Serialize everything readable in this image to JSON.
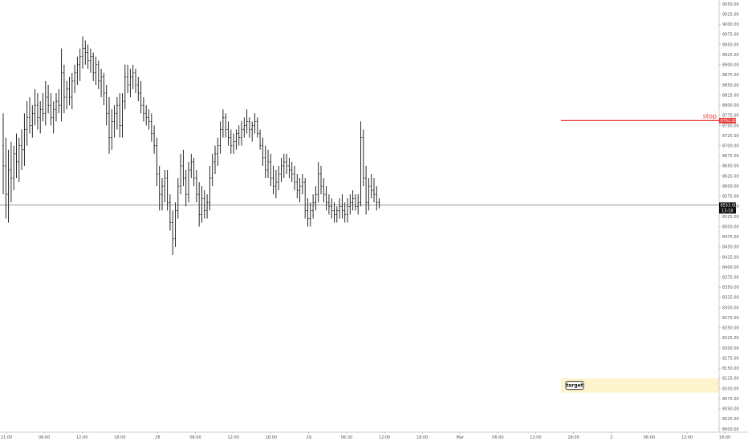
{
  "chart_data": {
    "type": "ohlc",
    "y_axis": {
      "position": "right",
      "ticks": [
        "9050.00",
        "9025.00",
        "9000.00",
        "8975.00",
        "8950.00",
        "8925.00",
        "8900.00",
        "8875.00",
        "8850.00",
        "8825.00",
        "8800.00",
        "8775.00",
        "8750.00",
        "8725.00",
        "8700.00",
        "8675.00",
        "8650.00",
        "8625.00",
        "8600.00",
        "8575.00",
        "8550.00",
        "8525.00",
        "8500.00",
        "8475.00",
        "8450.00",
        "8425.00",
        "8400.00",
        "8375.00",
        "8350.00",
        "8325.00",
        "8300.00",
        "8275.00",
        "8250.00",
        "8225.00",
        "8200.00",
        "8175.00",
        "8150.00",
        "8125.00",
        "8100.00",
        "8075.00",
        "8050.00",
        "8025.00",
        "8000.00"
      ],
      "range": [
        7992,
        9060
      ]
    },
    "x_axis": {
      "ticks": [
        "21:00",
        "06:00",
        "12:00",
        "18:00",
        "28",
        "06:00",
        "12:00",
        "18:00",
        "29",
        "06:30",
        "12:00",
        "18:00",
        "Mar",
        "06:00",
        "12:00",
        "18:00",
        "2",
        "06:00",
        "12:00",
        "18:00"
      ]
    },
    "series": [
      {
        "x": 0,
        "o": 8700,
        "h": 8780,
        "l": 8580,
        "c": 8650
      },
      {
        "x": 1,
        "o": 8650,
        "h": 8720,
        "l": 8520,
        "c": 8580
      },
      {
        "x": 2,
        "o": 8580,
        "h": 8690,
        "l": 8510,
        "c": 8640
      },
      {
        "x": 3,
        "o": 8640,
        "h": 8710,
        "l": 8560,
        "c": 8620
      },
      {
        "x": 4,
        "o": 8620,
        "h": 8700,
        "l": 8590,
        "c": 8680
      },
      {
        "x": 5,
        "o": 8680,
        "h": 8730,
        "l": 8620,
        "c": 8660
      },
      {
        "x": 6,
        "o": 8660,
        "h": 8720,
        "l": 8610,
        "c": 8700
      },
      {
        "x": 7,
        "o": 8700,
        "h": 8740,
        "l": 8640,
        "c": 8690
      },
      {
        "x": 8,
        "o": 8690,
        "h": 8780,
        "l": 8650,
        "c": 8740
      },
      {
        "x": 9,
        "o": 8740,
        "h": 8810,
        "l": 8700,
        "c": 8770
      },
      {
        "x": 10,
        "o": 8770,
        "h": 8820,
        "l": 8730,
        "c": 8750
      },
      {
        "x": 11,
        "o": 8750,
        "h": 8800,
        "l": 8720,
        "c": 8780
      },
      {
        "x": 12,
        "o": 8780,
        "h": 8840,
        "l": 8750,
        "c": 8800
      },
      {
        "x": 13,
        "o": 8800,
        "h": 8830,
        "l": 8740,
        "c": 8770
      },
      {
        "x": 14,
        "o": 8770,
        "h": 8810,
        "l": 8730,
        "c": 8790
      },
      {
        "x": 15,
        "o": 8790,
        "h": 8830,
        "l": 8760,
        "c": 8780
      },
      {
        "x": 16,
        "o": 8780,
        "h": 8860,
        "l": 8750,
        "c": 8820
      },
      {
        "x": 17,
        "o": 8820,
        "h": 8850,
        "l": 8780,
        "c": 8800
      },
      {
        "x": 18,
        "o": 8800,
        "h": 8830,
        "l": 8750,
        "c": 8770
      },
      {
        "x": 19,
        "o": 8770,
        "h": 8810,
        "l": 8730,
        "c": 8790
      },
      {
        "x": 20,
        "o": 8790,
        "h": 8830,
        "l": 8760,
        "c": 8810
      },
      {
        "x": 21,
        "o": 8810,
        "h": 8840,
        "l": 8780,
        "c": 8800
      },
      {
        "x": 22,
        "o": 8800,
        "h": 8940,
        "l": 8760,
        "c": 8880
      },
      {
        "x": 23,
        "o": 8880,
        "h": 8900,
        "l": 8780,
        "c": 8820
      },
      {
        "x": 24,
        "o": 8820,
        "h": 8860,
        "l": 8790,
        "c": 8840
      },
      {
        "x": 25,
        "o": 8840,
        "h": 8870,
        "l": 8800,
        "c": 8820
      },
      {
        "x": 26,
        "o": 8820,
        "h": 8880,
        "l": 8790,
        "c": 8860
      },
      {
        "x": 27,
        "o": 8860,
        "h": 8900,
        "l": 8830,
        "c": 8880
      },
      {
        "x": 28,
        "o": 8880,
        "h": 8920,
        "l": 8850,
        "c": 8900
      },
      {
        "x": 29,
        "o": 8900,
        "h": 8940,
        "l": 8860,
        "c": 8920
      },
      {
        "x": 30,
        "o": 8920,
        "h": 8970,
        "l": 8890,
        "c": 8940
      },
      {
        "x": 31,
        "o": 8940,
        "h": 8960,
        "l": 8900,
        "c": 8930
      },
      {
        "x": 32,
        "o": 8930,
        "h": 8950,
        "l": 8890,
        "c": 8910
      },
      {
        "x": 33,
        "o": 8910,
        "h": 8940,
        "l": 8880,
        "c": 8920
      },
      {
        "x": 34,
        "o": 8920,
        "h": 8930,
        "l": 8860,
        "c": 8880
      },
      {
        "x": 35,
        "o": 8880,
        "h": 8920,
        "l": 8850,
        "c": 8900
      },
      {
        "x": 36,
        "o": 8900,
        "h": 8910,
        "l": 8840,
        "c": 8860
      },
      {
        "x": 37,
        "o": 8860,
        "h": 8890,
        "l": 8820,
        "c": 8870
      },
      {
        "x": 38,
        "o": 8870,
        "h": 8880,
        "l": 8800,
        "c": 8830
      },
      {
        "x": 39,
        "o": 8830,
        "h": 8850,
        "l": 8750,
        "c": 8780
      },
      {
        "x": 40,
        "o": 8780,
        "h": 8820,
        "l": 8680,
        "c": 8720
      },
      {
        "x": 41,
        "o": 8720,
        "h": 8790,
        "l": 8690,
        "c": 8760
      },
      {
        "x": 42,
        "o": 8760,
        "h": 8800,
        "l": 8720,
        "c": 8780
      },
      {
        "x": 43,
        "o": 8780,
        "h": 8820,
        "l": 8740,
        "c": 8800
      },
      {
        "x": 44,
        "o": 8800,
        "h": 8830,
        "l": 8720,
        "c": 8750
      },
      {
        "x": 45,
        "o": 8750,
        "h": 8830,
        "l": 8720,
        "c": 8810
      },
      {
        "x": 46,
        "o": 8810,
        "h": 8900,
        "l": 8790,
        "c": 8870
      },
      {
        "x": 47,
        "o": 8870,
        "h": 8900,
        "l": 8830,
        "c": 8850
      },
      {
        "x": 48,
        "o": 8850,
        "h": 8890,
        "l": 8820,
        "c": 8870
      },
      {
        "x": 49,
        "o": 8870,
        "h": 8900,
        "l": 8840,
        "c": 8880
      },
      {
        "x": 50,
        "o": 8880,
        "h": 8890,
        "l": 8830,
        "c": 8850
      },
      {
        "x": 51,
        "o": 8850,
        "h": 8870,
        "l": 8810,
        "c": 8830
      },
      {
        "x": 52,
        "o": 8830,
        "h": 8860,
        "l": 8780,
        "c": 8800
      },
      {
        "x": 53,
        "o": 8800,
        "h": 8820,
        "l": 8760,
        "c": 8780
      },
      {
        "x": 54,
        "o": 8780,
        "h": 8800,
        "l": 8750,
        "c": 8770
      },
      {
        "x": 55,
        "o": 8770,
        "h": 8790,
        "l": 8740,
        "c": 8760
      },
      {
        "x": 56,
        "o": 8760,
        "h": 8780,
        "l": 8710,
        "c": 8730
      },
      {
        "x": 57,
        "o": 8730,
        "h": 8750,
        "l": 8680,
        "c": 8700
      },
      {
        "x": 58,
        "o": 8700,
        "h": 8720,
        "l": 8600,
        "c": 8630
      },
      {
        "x": 59,
        "o": 8630,
        "h": 8650,
        "l": 8540,
        "c": 8580
      },
      {
        "x": 60,
        "o": 8580,
        "h": 8620,
        "l": 8540,
        "c": 8600
      },
      {
        "x": 61,
        "o": 8600,
        "h": 8640,
        "l": 8560,
        "c": 8620
      },
      {
        "x": 62,
        "o": 8620,
        "h": 8640,
        "l": 8540,
        "c": 8560
      },
      {
        "x": 63,
        "o": 8560,
        "h": 8580,
        "l": 8490,
        "c": 8510
      },
      {
        "x": 64,
        "o": 8510,
        "h": 8540,
        "l": 8430,
        "c": 8470
      },
      {
        "x": 65,
        "o": 8470,
        "h": 8560,
        "l": 8450,
        "c": 8540
      },
      {
        "x": 66,
        "o": 8540,
        "h": 8620,
        "l": 8520,
        "c": 8600
      },
      {
        "x": 67,
        "o": 8600,
        "h": 8680,
        "l": 8580,
        "c": 8650
      },
      {
        "x": 68,
        "o": 8650,
        "h": 8690,
        "l": 8600,
        "c": 8620
      },
      {
        "x": 69,
        "o": 8620,
        "h": 8640,
        "l": 8550,
        "c": 8580
      },
      {
        "x": 70,
        "o": 8580,
        "h": 8660,
        "l": 8560,
        "c": 8640
      },
      {
        "x": 71,
        "o": 8640,
        "h": 8680,
        "l": 8620,
        "c": 8660
      },
      {
        "x": 72,
        "o": 8660,
        "h": 8670,
        "l": 8600,
        "c": 8620
      },
      {
        "x": 73,
        "o": 8620,
        "h": 8640,
        "l": 8560,
        "c": 8580
      },
      {
        "x": 74,
        "o": 8580,
        "h": 8610,
        "l": 8500,
        "c": 8530
      },
      {
        "x": 75,
        "o": 8530,
        "h": 8600,
        "l": 8510,
        "c": 8570
      },
      {
        "x": 76,
        "o": 8570,
        "h": 8590,
        "l": 8520,
        "c": 8540
      },
      {
        "x": 77,
        "o": 8540,
        "h": 8580,
        "l": 8520,
        "c": 8560
      },
      {
        "x": 78,
        "o": 8560,
        "h": 8650,
        "l": 8540,
        "c": 8620
      },
      {
        "x": 79,
        "o": 8620,
        "h": 8680,
        "l": 8600,
        "c": 8660
      },
      {
        "x": 80,
        "o": 8660,
        "h": 8700,
        "l": 8630,
        "c": 8680
      },
      {
        "x": 81,
        "o": 8680,
        "h": 8720,
        "l": 8650,
        "c": 8700
      },
      {
        "x": 82,
        "o": 8700,
        "h": 8760,
        "l": 8680,
        "c": 8740
      },
      {
        "x": 83,
        "o": 8740,
        "h": 8790,
        "l": 8720,
        "c": 8770
      },
      {
        "x": 84,
        "o": 8770,
        "h": 8780,
        "l": 8720,
        "c": 8740
      },
      {
        "x": 85,
        "o": 8740,
        "h": 8760,
        "l": 8700,
        "c": 8720
      },
      {
        "x": 86,
        "o": 8720,
        "h": 8740,
        "l": 8680,
        "c": 8700
      },
      {
        "x": 87,
        "o": 8700,
        "h": 8730,
        "l": 8680,
        "c": 8710
      },
      {
        "x": 88,
        "o": 8710,
        "h": 8740,
        "l": 8690,
        "c": 8730
      },
      {
        "x": 89,
        "o": 8730,
        "h": 8750,
        "l": 8700,
        "c": 8720
      },
      {
        "x": 90,
        "o": 8720,
        "h": 8760,
        "l": 8700,
        "c": 8740
      },
      {
        "x": 91,
        "o": 8740,
        "h": 8770,
        "l": 8720,
        "c": 8750
      },
      {
        "x": 92,
        "o": 8750,
        "h": 8790,
        "l": 8730,
        "c": 8760
      },
      {
        "x": 93,
        "o": 8760,
        "h": 8770,
        "l": 8720,
        "c": 8740
      },
      {
        "x": 94,
        "o": 8740,
        "h": 8760,
        "l": 8710,
        "c": 8750
      },
      {
        "x": 95,
        "o": 8750,
        "h": 8780,
        "l": 8730,
        "c": 8760
      },
      {
        "x": 96,
        "o": 8760,
        "h": 8770,
        "l": 8720,
        "c": 8730
      },
      {
        "x": 97,
        "o": 8730,
        "h": 8740,
        "l": 8690,
        "c": 8700
      },
      {
        "x": 98,
        "o": 8700,
        "h": 8720,
        "l": 8650,
        "c": 8670
      },
      {
        "x": 99,
        "o": 8670,
        "h": 8700,
        "l": 8620,
        "c": 8640
      },
      {
        "x": 100,
        "o": 8640,
        "h": 8690,
        "l": 8620,
        "c": 8660
      },
      {
        "x": 101,
        "o": 8660,
        "h": 8680,
        "l": 8600,
        "c": 8620
      },
      {
        "x": 102,
        "o": 8620,
        "h": 8650,
        "l": 8580,
        "c": 8600
      },
      {
        "x": 103,
        "o": 8600,
        "h": 8640,
        "l": 8570,
        "c": 8610
      },
      {
        "x": 104,
        "o": 8610,
        "h": 8650,
        "l": 8590,
        "c": 8630
      },
      {
        "x": 105,
        "o": 8630,
        "h": 8670,
        "l": 8610,
        "c": 8650
      },
      {
        "x": 106,
        "o": 8650,
        "h": 8680,
        "l": 8620,
        "c": 8660
      },
      {
        "x": 107,
        "o": 8660,
        "h": 8680,
        "l": 8630,
        "c": 8650
      },
      {
        "x": 108,
        "o": 8650,
        "h": 8670,
        "l": 8620,
        "c": 8640
      },
      {
        "x": 109,
        "o": 8640,
        "h": 8660,
        "l": 8610,
        "c": 8630
      },
      {
        "x": 110,
        "o": 8630,
        "h": 8650,
        "l": 8590,
        "c": 8610
      },
      {
        "x": 111,
        "o": 8610,
        "h": 8630,
        "l": 8570,
        "c": 8590
      },
      {
        "x": 112,
        "o": 8590,
        "h": 8620,
        "l": 8560,
        "c": 8600
      },
      {
        "x": 113,
        "o": 8600,
        "h": 8630,
        "l": 8580,
        "c": 8610
      },
      {
        "x": 114,
        "o": 8610,
        "h": 8620,
        "l": 8520,
        "c": 8540
      },
      {
        "x": 115,
        "o": 8540,
        "h": 8570,
        "l": 8500,
        "c": 8520
      },
      {
        "x": 116,
        "o": 8520,
        "h": 8560,
        "l": 8500,
        "c": 8540
      },
      {
        "x": 117,
        "o": 8540,
        "h": 8580,
        "l": 8520,
        "c": 8560
      },
      {
        "x": 118,
        "o": 8560,
        "h": 8600,
        "l": 8540,
        "c": 8580
      },
      {
        "x": 119,
        "o": 8580,
        "h": 8660,
        "l": 8560,
        "c": 8630
      },
      {
        "x": 120,
        "o": 8630,
        "h": 8650,
        "l": 8580,
        "c": 8600
      },
      {
        "x": 121,
        "o": 8600,
        "h": 8620,
        "l": 8560,
        "c": 8580
      },
      {
        "x": 122,
        "o": 8580,
        "h": 8600,
        "l": 8540,
        "c": 8560
      },
      {
        "x": 123,
        "o": 8560,
        "h": 8580,
        "l": 8530,
        "c": 8550
      },
      {
        "x": 124,
        "o": 8550,
        "h": 8570,
        "l": 8520,
        "c": 8540
      },
      {
        "x": 125,
        "o": 8540,
        "h": 8560,
        "l": 8510,
        "c": 8530
      },
      {
        "x": 126,
        "o": 8530,
        "h": 8550,
        "l": 8510,
        "c": 8540
      },
      {
        "x": 127,
        "o": 8540,
        "h": 8570,
        "l": 8520,
        "c": 8550
      },
      {
        "x": 128,
        "o": 8550,
        "h": 8580,
        "l": 8520,
        "c": 8540
      },
      {
        "x": 129,
        "o": 8540,
        "h": 8560,
        "l": 8510,
        "c": 8530
      },
      {
        "x": 130,
        "o": 8530,
        "h": 8570,
        "l": 8510,
        "c": 8550
      },
      {
        "x": 131,
        "o": 8550,
        "h": 8580,
        "l": 8530,
        "c": 8560
      },
      {
        "x": 132,
        "o": 8560,
        "h": 8590,
        "l": 8540,
        "c": 8570
      },
      {
        "x": 133,
        "o": 8570,
        "h": 8580,
        "l": 8540,
        "c": 8550
      },
      {
        "x": 134,
        "o": 8550,
        "h": 8580,
        "l": 8530,
        "c": 8560
      },
      {
        "x": 135,
        "o": 8560,
        "h": 8760,
        "l": 8550,
        "c": 8720
      },
      {
        "x": 136,
        "o": 8720,
        "h": 8740,
        "l": 8600,
        "c": 8620
      },
      {
        "x": 137,
        "o": 8620,
        "h": 8650,
        "l": 8530,
        "c": 8560
      },
      {
        "x": 138,
        "o": 8560,
        "h": 8620,
        "l": 8540,
        "c": 8600
      },
      {
        "x": 139,
        "o": 8600,
        "h": 8630,
        "l": 8570,
        "c": 8590
      },
      {
        "x": 140,
        "o": 8590,
        "h": 8620,
        "l": 8560,
        "c": 8580
      },
      {
        "x": 141,
        "o": 8580,
        "h": 8600,
        "l": 8540,
        "c": 8560
      },
      {
        "x": 142,
        "o": 8560,
        "h": 8570,
        "l": 8545,
        "c": 8553
      }
    ],
    "stop": {
      "label": "stop",
      "price": 8762,
      "price_tag": "8762.00"
    },
    "current": {
      "price": 8553,
      "price_tag": "8553.00",
      "countdown": "13:18"
    },
    "target": {
      "label": "target",
      "price_top": 8125,
      "price_bottom": 8090
    },
    "colors": {
      "bars": "#111111",
      "stop": "#e53935",
      "target_fill": "#fdf3cc",
      "current_line": "#333333",
      "axis_text": "#555555"
    }
  }
}
